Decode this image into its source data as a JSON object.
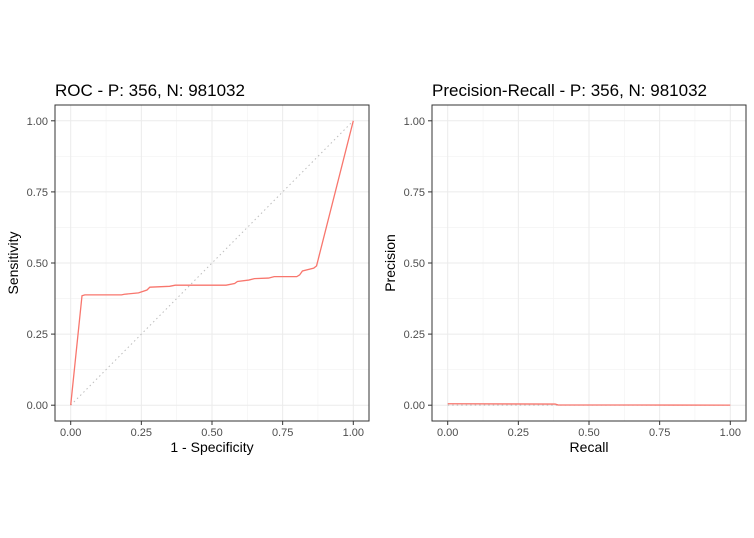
{
  "chart_data": [
    {
      "type": "line",
      "title": "ROC - P: 356, N: 981032",
      "xlabel": "1 - Specificity",
      "ylabel": "Sensitivity",
      "xlim": [
        0,
        1
      ],
      "ylim": [
        0,
        1
      ],
      "x_ticks": [
        "0.00",
        "0.25",
        "0.50",
        "0.75",
        "1.00"
      ],
      "y_ticks": [
        "0.00",
        "0.25",
        "0.50",
        "0.75",
        "1.00"
      ],
      "grid": true,
      "reference_line": {
        "style": "dotted",
        "color": "#bdbdbd",
        "from": [
          0,
          0
        ],
        "to": [
          1,
          1
        ]
      },
      "series": [
        {
          "color": "#f8766d",
          "points": [
            [
              0,
              0
            ],
            [
              0.04,
              0.385
            ],
            [
              0.05,
              0.388
            ],
            [
              0.18,
              0.388
            ],
            [
              0.19,
              0.39
            ],
            [
              0.24,
              0.395
            ],
            [
              0.27,
              0.405
            ],
            [
              0.28,
              0.415
            ],
            [
              0.35,
              0.418
            ],
            [
              0.37,
              0.422
            ],
            [
              0.55,
              0.422
            ],
            [
              0.58,
              0.428
            ],
            [
              0.59,
              0.435
            ],
            [
              0.63,
              0.44
            ],
            [
              0.65,
              0.445
            ],
            [
              0.7,
              0.447
            ],
            [
              0.72,
              0.452
            ],
            [
              0.8,
              0.452
            ],
            [
              0.81,
              0.458
            ],
            [
              0.82,
              0.472
            ],
            [
              0.86,
              0.482
            ],
            [
              0.87,
              0.49
            ],
            [
              1.0,
              1.0
            ]
          ]
        }
      ]
    },
    {
      "type": "line",
      "title": "Precision-Recall - P: 356, N: 981032",
      "xlabel": "Recall",
      "ylabel": "Precision",
      "xlim": [
        0,
        1
      ],
      "ylim": [
        0,
        1
      ],
      "x_ticks": [
        "0.00",
        "0.25",
        "0.50",
        "0.75",
        "1.00"
      ],
      "y_ticks": [
        "0.00",
        "0.25",
        "0.50",
        "0.75",
        "1.00"
      ],
      "grid": true,
      "reference_line": {
        "style": "dotted",
        "color": "#bdbdbd",
        "from": [
          0,
          0.00036
        ],
        "to": [
          1,
          0.00036
        ]
      },
      "series": [
        {
          "color": "#f8766d",
          "points": [
            [
              0,
              0.005
            ],
            [
              0.38,
              0.004
            ],
            [
              0.39,
              0.001
            ],
            [
              0.6,
              0.0008
            ],
            [
              0.8,
              0.0005
            ],
            [
              1.0,
              0.0004
            ]
          ]
        }
      ]
    }
  ]
}
